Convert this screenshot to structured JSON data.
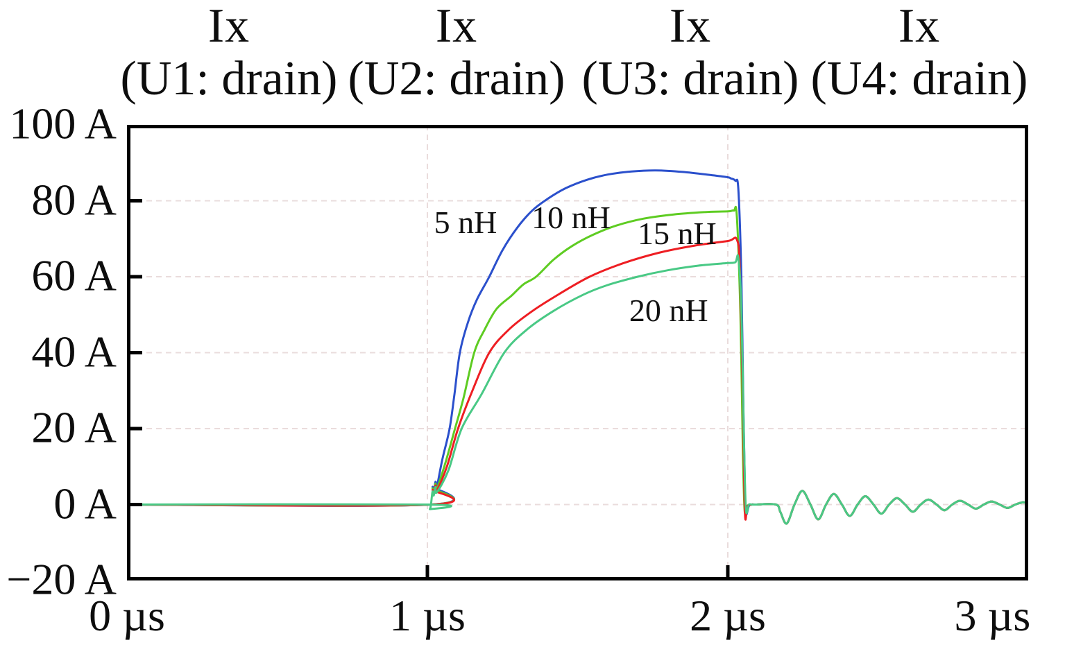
{
  "chart_data": {
    "type": "line",
    "column_titles": [
      {
        "line1": "Ix",
        "line2": "(U1: drain)"
      },
      {
        "line1": "Ix",
        "line2": "(U2: drain)"
      },
      {
        "line1": "Ix",
        "line2": "(U3: drain)"
      },
      {
        "line1": "Ix",
        "line2": "(U4: drain)"
      }
    ],
    "x_unit": "µs",
    "y_unit": "A",
    "xlim": [
      0,
      3
    ],
    "ylim": [
      -20,
      100
    ],
    "x_ticks": [
      0,
      1,
      2,
      3
    ],
    "x_tick_labels": [
      "0 µs",
      "1 µs",
      "2 µs",
      "3 µs"
    ],
    "y_ticks": [
      100,
      80,
      60,
      40,
      20,
      0,
      -20
    ],
    "y_tick_labels": [
      "100 A",
      "80 A",
      "60 A",
      "40 A",
      "20 A",
      "0 A",
      "−20 A"
    ],
    "grid": true,
    "grid_color": "#eadcdc",
    "frame_color": "#000000",
    "legend_position": "inline-labels",
    "series": [
      {
        "name": "5 nH",
        "color": "#2b50cc",
        "label": {
          "text": "5 nH",
          "t": 1.127,
          "i": 74.2
        },
        "points": [
          [
            0,
            0
          ],
          [
            1.013,
            0
          ],
          [
            1.017,
            4.6
          ],
          [
            1.021,
            3.0
          ],
          [
            1.027,
            6.0
          ],
          [
            1.031,
            4.5
          ],
          [
            1.05,
            12
          ],
          [
            1.074,
            20
          ],
          [
            1.09,
            29
          ],
          [
            1.108,
            40
          ],
          [
            1.135,
            48
          ],
          [
            1.165,
            54
          ],
          [
            1.206,
            60
          ],
          [
            1.25,
            67
          ],
          [
            1.3,
            73
          ],
          [
            1.35,
            77.5
          ],
          [
            1.4,
            80.5
          ],
          [
            1.46,
            83.3
          ],
          [
            1.53,
            85.5
          ],
          [
            1.6,
            86.9
          ],
          [
            1.68,
            87.7
          ],
          [
            1.76,
            88
          ],
          [
            1.85,
            87.6
          ],
          [
            1.95,
            86.7
          ],
          [
            2.0,
            86.2
          ],
          [
            2.01,
            85.9
          ],
          [
            2.025,
            85.3
          ],
          [
            2.035,
            83
          ],
          [
            2.045,
            60
          ],
          [
            2.052,
            25
          ],
          [
            2.058,
            0
          ],
          [
            2.062,
            -2.6
          ],
          [
            2.07,
            -0.4
          ],
          [
            2.08,
            0
          ]
        ]
      },
      {
        "name": "10 nH",
        "color": "#5ecc22",
        "label": {
          "text": "10 nH",
          "t": 1.478,
          "i": 75.5
        },
        "points": [
          [
            0,
            0
          ],
          [
            1.013,
            0
          ],
          [
            1.017,
            4.2
          ],
          [
            1.021,
            2.8
          ],
          [
            1.027,
            5.5
          ],
          [
            1.031,
            4.0
          ],
          [
            1.06,
            11
          ],
          [
            1.092,
            20
          ],
          [
            1.12,
            28
          ],
          [
            1.156,
            40
          ],
          [
            1.19,
            46
          ],
          [
            1.23,
            51.5
          ],
          [
            1.28,
            55
          ],
          [
            1.32,
            58
          ],
          [
            1.362,
            60
          ],
          [
            1.42,
            64.5
          ],
          [
            1.48,
            68
          ],
          [
            1.55,
            71
          ],
          [
            1.63,
            73.5
          ],
          [
            1.72,
            75.3
          ],
          [
            1.82,
            76.4
          ],
          [
            1.92,
            77
          ],
          [
            2.0,
            77.2
          ],
          [
            2.02,
            77.4
          ],
          [
            2.03,
            76
          ],
          [
            2.042,
            50
          ],
          [
            2.05,
            15
          ],
          [
            2.056,
            -1.5
          ],
          [
            2.065,
            -0.3
          ],
          [
            2.08,
            0
          ]
        ]
      },
      {
        "name": "15 nH",
        "color": "#ee1e23",
        "label": {
          "text": "15 nH",
          "t": 1.831,
          "i": 71.3
        },
        "points": [
          [
            0,
            0
          ],
          [
            1.013,
            0
          ],
          [
            1.017,
            3.8
          ],
          [
            1.021,
            2.6
          ],
          [
            1.027,
            5.0
          ],
          [
            1.031,
            3.6
          ],
          [
            1.065,
            10
          ],
          [
            1.102,
            20
          ],
          [
            1.15,
            30
          ],
          [
            1.206,
            40
          ],
          [
            1.27,
            46
          ],
          [
            1.35,
            51
          ],
          [
            1.44,
            55.5
          ],
          [
            1.54,
            60
          ],
          [
            1.65,
            63.5
          ],
          [
            1.77,
            66.3
          ],
          [
            1.89,
            68.2
          ],
          [
            2.0,
            69.4
          ],
          [
            2.03,
            69.8
          ],
          [
            2.04,
            62
          ],
          [
            2.05,
            28
          ],
          [
            2.057,
            -2.2
          ],
          [
            2.065,
            -0.4
          ],
          [
            2.08,
            0
          ]
        ]
      },
      {
        "name": "20 nH",
        "color": "#49c985",
        "label": {
          "text": "20 nH",
          "t": 1.803,
          "i": 51.0
        },
        "points": [
          [
            0,
            0
          ],
          [
            1.004,
            0
          ],
          [
            1.008,
            -1.2
          ],
          [
            1.012,
            0
          ],
          [
            1.017,
            3.4
          ],
          [
            1.021,
            2.4
          ],
          [
            1.027,
            4.6
          ],
          [
            1.031,
            3.2
          ],
          [
            1.07,
            9
          ],
          [
            1.114,
            20
          ],
          [
            1.18,
            29
          ],
          [
            1.256,
            40
          ],
          [
            1.33,
            46
          ],
          [
            1.42,
            51
          ],
          [
            1.52,
            55.3
          ],
          [
            1.6,
            57.8
          ],
          [
            1.7,
            60
          ],
          [
            1.8,
            61.7
          ],
          [
            1.9,
            62.9
          ],
          [
            2.0,
            63.6
          ],
          [
            2.025,
            63.8
          ],
          [
            2.035,
            65
          ],
          [
            2.045,
            52
          ],
          [
            2.053,
            20
          ],
          [
            2.06,
            -1
          ],
          [
            2.07,
            0
          ],
          [
            2.08,
            0
          ]
        ]
      }
    ],
    "ringing_tail": [
      [
        2.09,
        0
      ],
      [
        2.16,
        0
      ],
      [
        2.175,
        -2
      ],
      [
        2.196,
        -5
      ],
      [
        2.222,
        0
      ],
      [
        2.248,
        3.6
      ],
      [
        2.275,
        0
      ],
      [
        2.301,
        -3.9
      ],
      [
        2.327,
        0
      ],
      [
        2.353,
        2.8
      ],
      [
        2.38,
        0
      ],
      [
        2.406,
        -3.0
      ],
      [
        2.432,
        0
      ],
      [
        2.458,
        2.2
      ],
      [
        2.485,
        0
      ],
      [
        2.511,
        -2.4
      ],
      [
        2.537,
        0
      ],
      [
        2.563,
        1.7
      ],
      [
        2.59,
        0
      ],
      [
        2.616,
        -1.9
      ],
      [
        2.642,
        0
      ],
      [
        2.668,
        1.3
      ],
      [
        2.695,
        0
      ],
      [
        2.721,
        -1.5
      ],
      [
        2.747,
        0
      ],
      [
        2.773,
        1.0
      ],
      [
        2.8,
        0
      ],
      [
        2.826,
        -1.1
      ],
      [
        2.852,
        0
      ],
      [
        2.878,
        0.8
      ],
      [
        2.905,
        0
      ],
      [
        2.931,
        -0.9
      ],
      [
        2.957,
        0
      ],
      [
        2.983,
        0.6
      ],
      [
        3.0,
        0.2
      ]
    ]
  }
}
